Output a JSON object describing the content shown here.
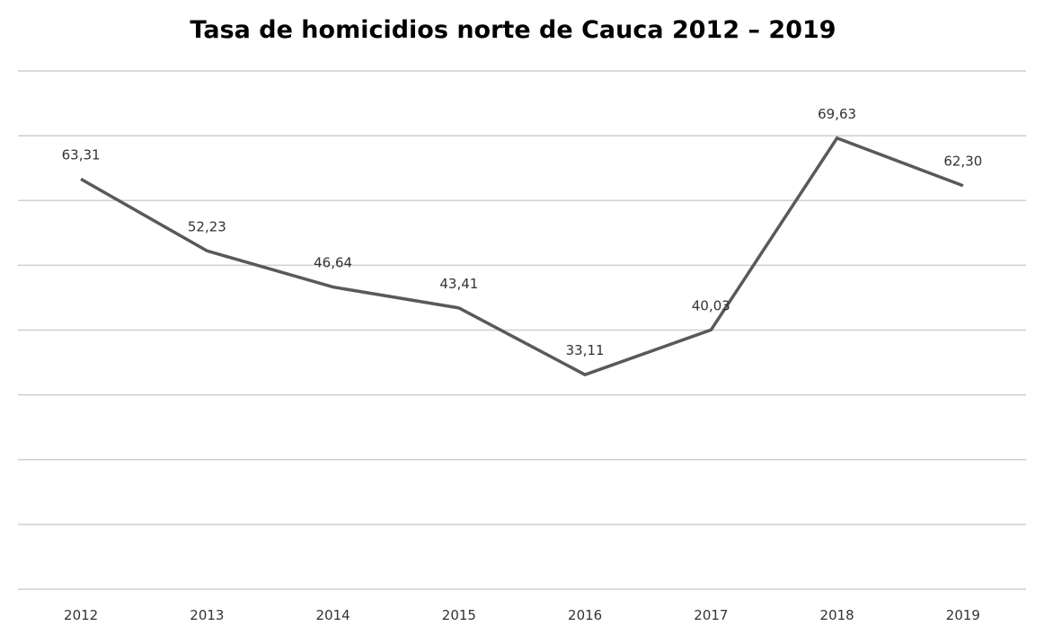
{
  "chart_data": {
    "type": "line",
    "title": "Tasa de homicidios norte de Cauca 2012 – 2019",
    "categories": [
      "2012",
      "2013",
      "2014",
      "2015",
      "2016",
      "2017",
      "2018",
      "2019"
    ],
    "values": [
      63.31,
      52.23,
      46.64,
      43.41,
      33.11,
      40.03,
      69.63,
      62.3
    ],
    "data_labels": [
      "63,31",
      "52,23",
      "46,64",
      "43,41",
      "33,11",
      "40,03",
      "69,63",
      "62,30"
    ],
    "xlabel": "",
    "ylabel": "",
    "ylim": [
      0,
      80
    ],
    "y_tick_step": 10,
    "grid": true,
    "legend": "none",
    "colors": {
      "line": "#595959",
      "grid": "#cfcfcf"
    }
  }
}
